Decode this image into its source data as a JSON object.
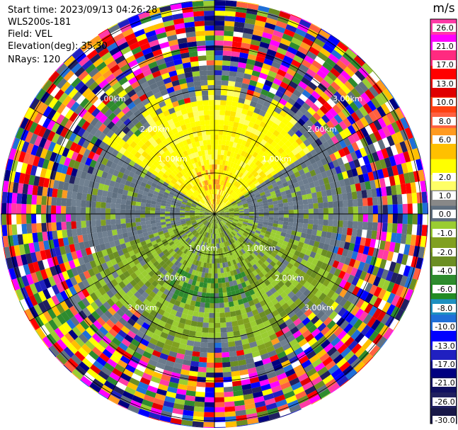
{
  "info": {
    "start_time": "Start time: 2023/09/13 04:26:28",
    "site": "WLS200s-181",
    "field": "Field: VEL",
    "elevation": "Elevation(deg): 35.30",
    "nrays": "NRays: 120"
  },
  "chart_data": {
    "type": "heatmap",
    "projection": "polar-ppi",
    "field": "VEL",
    "site": "WLS200s-181",
    "start_time": "2023/09/13 04:26:28",
    "elevation_deg": 35.3,
    "n_rays": 120,
    "range_rings": [
      {
        "label": "1.00km"
      },
      {
        "label": "2.00km"
      },
      {
        "label": "3.00km"
      }
    ],
    "colorbar": {
      "unit": "m/s",
      "ticks": [
        "26.0",
        "21.0",
        "17.0",
        "13.0",
        "10.0",
        "8.0",
        "6.0",
        "2.0",
        "1.0",
        "0.0",
        "-1.0",
        "-2.0",
        "-4.0",
        "-6.0",
        "-8.0",
        "-10.0",
        "-13.0",
        "-17.0",
        "-21.0",
        "-26.0",
        "-30.0"
      ],
      "colors": [
        "#ff3aa6",
        "#ff00ff",
        "#ff2a80",
        "#ff0000",
        "#e00000",
        "#ff4010",
        "#ff6040",
        "#ff9a20",
        "#ffc000",
        "#ffff00",
        "#ffff66",
        "#888888",
        "#607080",
        "#9acd32",
        "#80a020",
        "#6b8e23",
        "#2e8b2e",
        "#228b22",
        "#1e90c0",
        "#1f6fd8",
        "#0000ff",
        "#2020c0",
        "#000080",
        "#101060",
        "#202060",
        "#181848"
      ]
    },
    "sectors": [
      {
        "name": "north-inner",
        "color_value": "2.0"
      },
      {
        "name": "south-inner",
        "color_value": "-2.0"
      },
      {
        "name": "east-west-band",
        "color_value": "0.0"
      },
      {
        "name": "outer-noise",
        "color_value": "mixed"
      }
    ]
  }
}
